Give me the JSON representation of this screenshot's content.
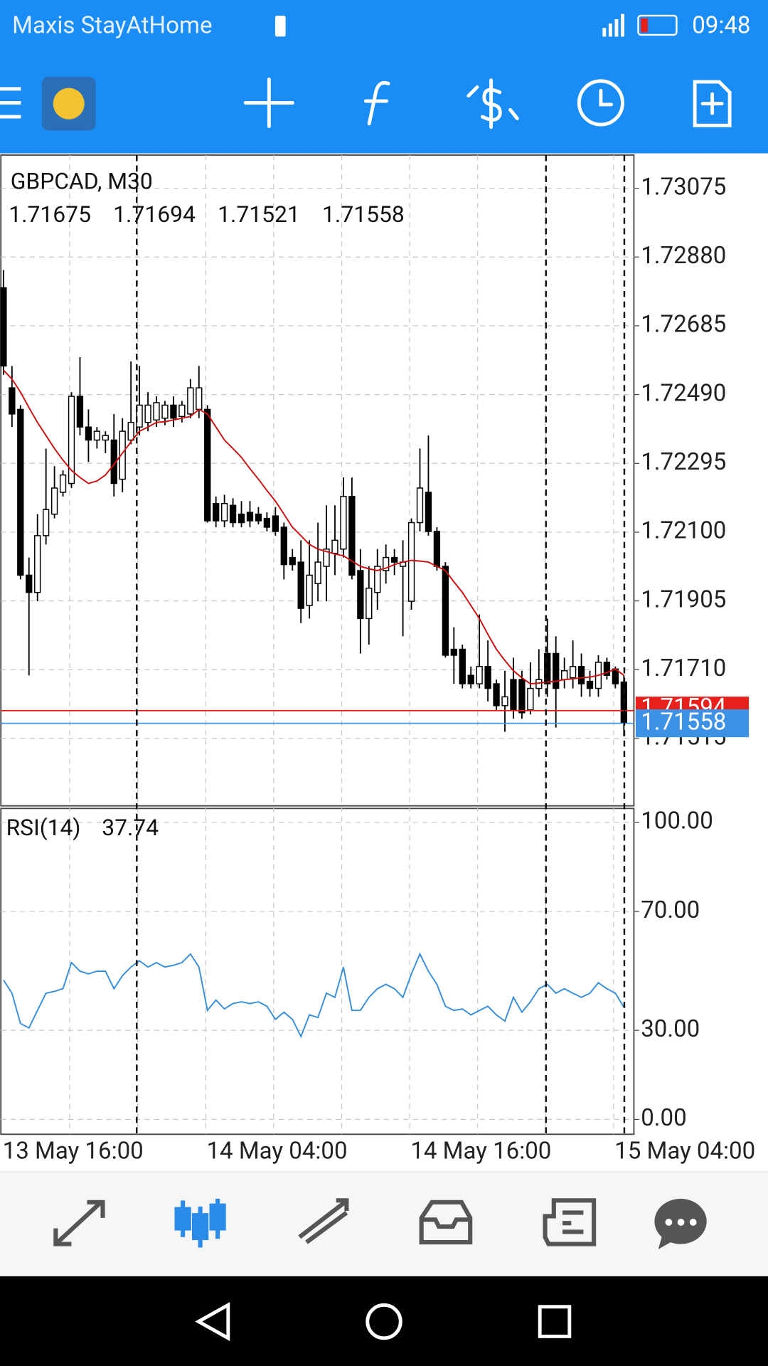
{
  "status_bar": {
    "carrier": "Maxis StayAtHome",
    "time": "09:48"
  },
  "chart_data": [
    {
      "type": "candlestick",
      "title": "GBPCAD, M30",
      "categories": [
        "13 May 16:00",
        null,
        null,
        null,
        null,
        null,
        null,
        null,
        null,
        null,
        null,
        null,
        null,
        null,
        null,
        null,
        null,
        null,
        null,
        null,
        null,
        null,
        null,
        null,
        "14 May 04:00",
        null,
        null,
        null,
        null,
        null,
        null,
        null,
        null,
        null,
        null,
        null,
        null,
        null,
        null,
        null,
        null,
        null,
        null,
        null,
        null,
        null,
        null,
        null,
        "14 May 16:00",
        null,
        null,
        null,
        null,
        null,
        null,
        null,
        null,
        null,
        null,
        null,
        null,
        null,
        null,
        null,
        null,
        null,
        null,
        null,
        null,
        null,
        null,
        null,
        "15 May 04:00",
        null
      ],
      "open": [
        1.72793,
        1.72509,
        1.72448,
        1.71978,
        1.71929,
        1.7209,
        1.72151,
        1.72213,
        1.72238,
        1.72485,
        1.72398,
        1.72361,
        1.72361,
        1.72361,
        1.7225,
        1.72361,
        1.72398,
        1.72411,
        1.72418,
        1.72423,
        1.7246,
        1.72428,
        1.72435,
        1.72448,
        1.72448,
        1.72181,
        1.72132,
        1.72176,
        1.72151,
        1.72156,
        1.72151,
        1.72139,
        1.72146,
        1.72114,
        1.72028,
        1.72015,
        1.71892,
        1.71954,
        1.72003,
        1.7204,
        1.72052,
        1.72201,
        1.71991,
        1.71855,
        1.71929,
        1.71991,
        1.72028,
        1.72003,
        1.71904,
        1.72127,
        1.72213,
        1.72102,
        1.72003,
        1.71768,
        1.71768,
        1.71694,
        1.7167,
        1.71719,
        1.7167,
        1.71608,
        1.71682,
        1.71682,
        1.71596,
        1.71657,
        1.71756,
        1.71756,
        1.71682,
        1.71687,
        1.71719,
        1.71677,
        1.71657,
        1.71731,
        1.71712,
        1.71675
      ],
      "high": [
        1.72843,
        1.72571,
        1.7246,
        1.72028,
        1.72151,
        1.72337,
        1.72287,
        1.72275,
        1.72497,
        1.72596,
        1.72448,
        1.72398,
        1.72386,
        1.72435,
        1.72423,
        1.72584,
        1.72571,
        1.72497,
        1.72485,
        1.72472,
        1.72485,
        1.72472,
        1.72534,
        1.72571,
        1.7246,
        1.72201,
        1.72206,
        1.72196,
        1.72188,
        1.72188,
        1.72171,
        1.72156,
        1.72171,
        1.72127,
        1.72052,
        1.72077,
        1.72077,
        1.72127,
        1.72176,
        1.72176,
        1.72255,
        1.72255,
        1.72052,
        1.72003,
        1.72052,
        1.72065,
        1.72052,
        1.72077,
        1.72139,
        1.72337,
        1.72374,
        1.72114,
        1.72015,
        1.7183,
        1.71781,
        1.71719,
        1.71867,
        1.71793,
        1.71682,
        1.71707,
        1.71744,
        1.71707,
        1.71731,
        1.71768,
        1.71855,
        1.71805,
        1.71744,
        1.71793,
        1.71756,
        1.71707,
        1.71751,
        1.71744,
        1.71719,
        1.71694
      ],
      "low": [
        1.72546,
        1.72398,
        1.71966,
        1.71694,
        1.71904,
        1.72065,
        1.72139,
        1.72201,
        1.72225,
        1.72374,
        1.72299,
        1.72337,
        1.72324,
        1.72201,
        1.72213,
        1.72349,
        1.72374,
        1.72386,
        1.72398,
        1.72403,
        1.72398,
        1.72411,
        1.72423,
        1.72423,
        1.72127,
        1.72114,
        1.72114,
        1.72114,
        1.72114,
        1.72114,
        1.72122,
        1.72102,
        1.7209,
        1.71966,
        1.71991,
        1.71842,
        1.71855,
        1.71904,
        1.71904,
        1.71978,
        1.72028,
        1.71966,
        1.71756,
        1.71781,
        1.7188,
        1.71954,
        1.71978,
        1.71805,
        1.7188,
        1.72102,
        1.7209,
        1.71991,
        1.71744,
        1.7167,
        1.71657,
        1.71657,
        1.71657,
        1.7162,
        1.71596,
        1.71534,
        1.71571,
        1.71571,
        1.71583,
        1.71633,
        1.71633,
        1.71546,
        1.71657,
        1.71657,
        1.71633,
        1.71633,
        1.71633,
        1.71682,
        1.71657,
        1.71521
      ],
      "close": [
        1.72571,
        1.72435,
        1.71978,
        1.71929,
        1.7209,
        1.72164,
        1.72225,
        1.72262,
        1.72485,
        1.72398,
        1.72361,
        1.72386,
        1.72374,
        1.72238,
        1.72386,
        1.72411,
        1.7246,
        1.7246,
        1.72467,
        1.7246,
        1.72423,
        1.7246,
        1.72509,
        1.72509,
        1.72132,
        1.72132,
        1.72181,
        1.72127,
        1.72127,
        1.72132,
        1.72132,
        1.72114,
        1.72102,
        1.72008,
        1.72008,
        1.71884,
        1.71978,
        1.72015,
        1.72052,
        1.72077,
        1.72201,
        1.71978,
        1.71855,
        1.71941,
        1.72003,
        1.72028,
        1.72015,
        1.72015,
        1.72127,
        1.72225,
        1.72102,
        1.72003,
        1.71751,
        1.71751,
        1.7167,
        1.7167,
        1.71719,
        1.71657,
        1.71608,
        1.71633,
        1.71596,
        1.71588,
        1.71657,
        1.71682,
        1.7167,
        1.71657,
        1.71707,
        1.71719,
        1.7167,
        1.71657,
        1.71731,
        1.71694,
        1.7167,
        1.71558
      ],
      "color_up": "#ffffff",
      "color_down": "#000000",
      "ma": {
        "color": "#cc1111",
        "values": [
          1.72559,
          1.72534,
          1.72497,
          1.72453,
          1.72411,
          1.72374,
          1.72337,
          1.72304,
          1.72275,
          1.72255,
          1.72238,
          1.72245,
          1.72262,
          1.72292,
          1.72324,
          1.72356,
          1.72386,
          1.72398,
          1.72411,
          1.72413,
          1.72418,
          1.72423,
          1.72428,
          1.72448,
          1.72435,
          1.72398,
          1.72361,
          1.72337,
          1.72312,
          1.7228,
          1.7225,
          1.72218,
          1.72188,
          1.72151,
          1.72114,
          1.7209,
          1.72065,
          1.72052,
          1.72045,
          1.72038,
          1.72033,
          1.72018,
          1.72003,
          1.71996,
          1.71991,
          1.71998,
          1.72008,
          1.72015,
          1.7202,
          1.72018,
          1.72015,
          1.72003,
          1.71991,
          1.71959,
          1.71929,
          1.71892,
          1.71855,
          1.7181,
          1.71768,
          1.71736,
          1.71707,
          1.71687,
          1.7167,
          1.71672,
          1.71675,
          1.71677,
          1.71682,
          1.71684,
          1.71687,
          1.71689,
          1.71694,
          1.71702,
          1.71712,
          1.71694
        ]
      },
      "ask": 1.71594,
      "ask_color": "#e8201c",
      "bid_color": "#3d92e6",
      "ylim": [
        1.71324,
        1.73169
      ],
      "yticks": [
        1.73075,
        {
          "value": 1.7288,
          "label": "1.72880"
        },
        1.72685,
        {
          "value": 1.7249,
          "label": "1.72490"
        },
        1.72295,
        {
          "value": 1.721,
          "label": "1.72100"
        },
        1.71905,
        {
          "value": 1.7171,
          "label": "1.71710"
        },
        1.71515
      ],
      "grid": true
    },
    {
      "type": "line",
      "title": "RSI(14)",
      "color": "#3a8fd9",
      "values": [
        46.9,
        42.5,
        32.3,
        30.8,
        36.7,
        42.5,
        43.1,
        44.0,
        52.8,
        49.9,
        49.0,
        49.9,
        49.9,
        44.0,
        48.4,
        51.3,
        53.4,
        51.3,
        52.8,
        51.3,
        51.9,
        52.8,
        55.7,
        51.3,
        36.7,
        40.2,
        37.2,
        39.0,
        39.6,
        39.0,
        39.6,
        38.1,
        33.7,
        36.1,
        33.7,
        27.9,
        35.2,
        34.3,
        42.5,
        41.1,
        51.3,
        36.7,
        36.7,
        41.1,
        44.0,
        45.5,
        44.0,
        41.1,
        49.0,
        55.7,
        49.9,
        45.5,
        38.1,
        36.7,
        37.2,
        35.2,
        36.7,
        38.1,
        35.2,
        33.1,
        41.1,
        36.1,
        39.6,
        44.0,
        45.5,
        42.5,
        44.0,
        42.5,
        41.1,
        42.5,
        46.0,
        44.0,
        42.5,
        37.74
      ],
      "ylim": [
        -5,
        104.7
      ],
      "yticks": [
        {
          "value": 100,
          "label": "100.00"
        },
        {
          "value": 70,
          "label": "70.00"
        },
        {
          "value": 30,
          "label": "30.00"
        },
        {
          "value": 0,
          "label": "0.00"
        }
      ],
      "grid": true
    }
  ]
}
